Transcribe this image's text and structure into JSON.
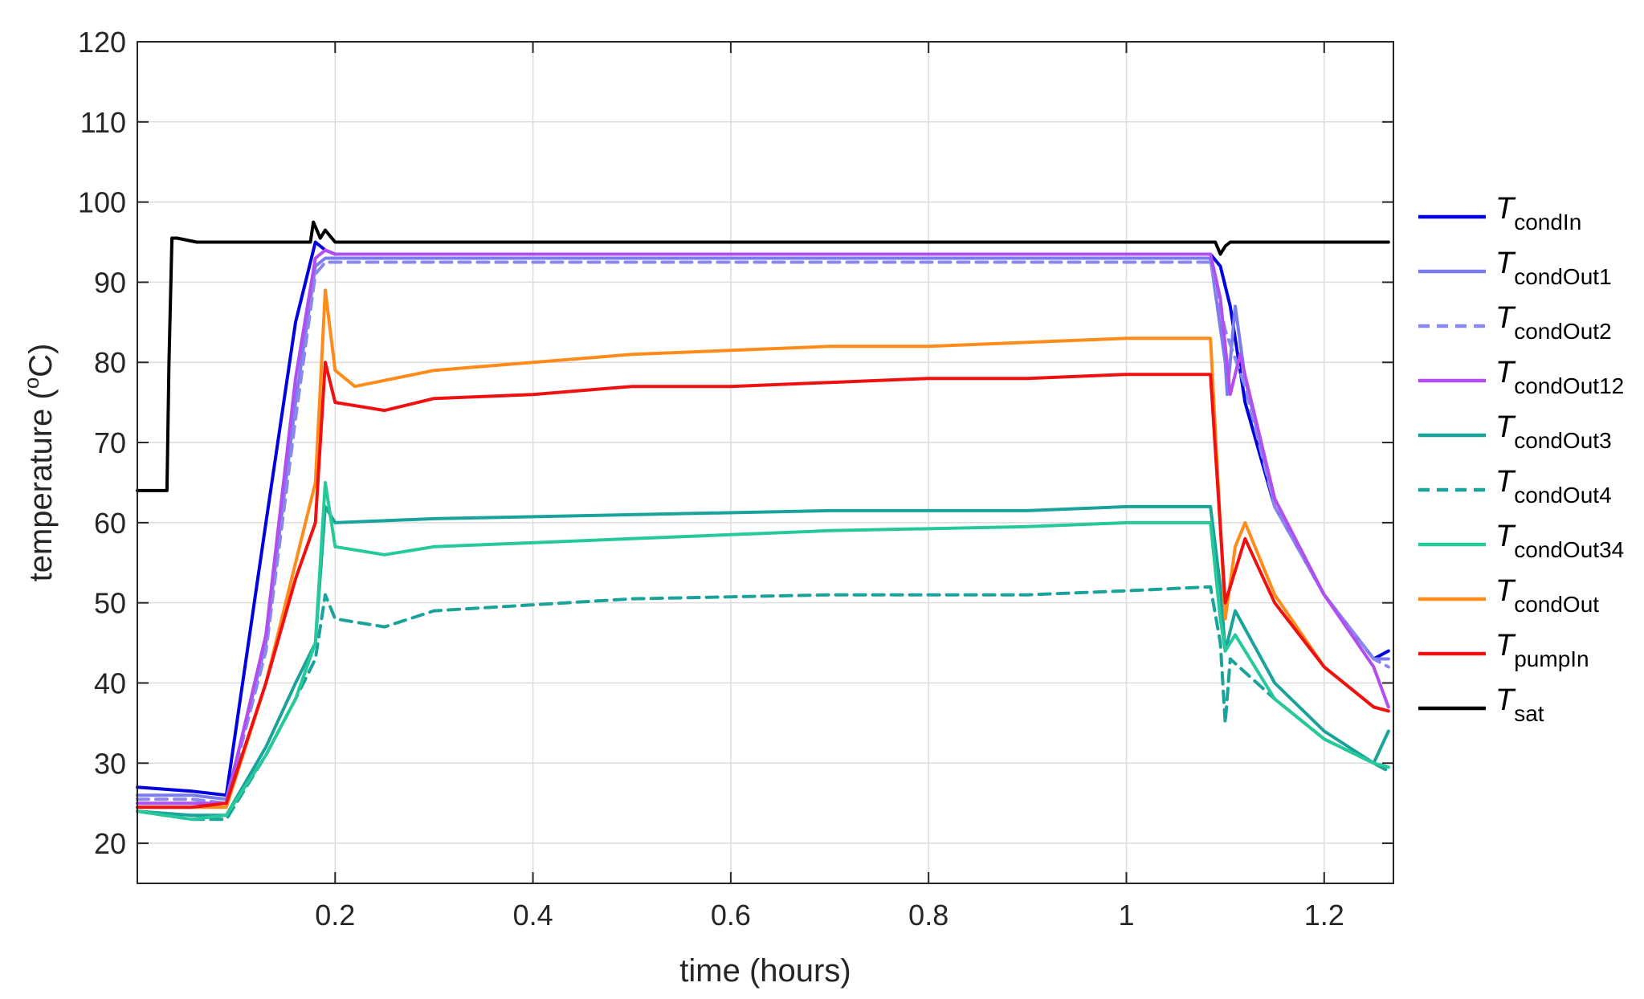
{
  "chart_data": {
    "type": "line",
    "xlabel": "time (hours)",
    "ylabel_pre": "temperature (",
    "ylabel_deg": "o",
    "ylabel_post": "C)",
    "xlim": [
      0,
      1.27
    ],
    "ylim": [
      15,
      120
    ],
    "xticks": [
      0.2,
      0.4,
      0.6,
      0.8,
      1,
      1.2
    ],
    "xtick_labels": [
      "0.2",
      "0.4",
      "0.6",
      "0.8",
      "1",
      "1.2"
    ],
    "yticks": [
      20,
      30,
      40,
      50,
      60,
      70,
      80,
      90,
      100,
      110,
      120
    ],
    "ytick_labels": [
      "20",
      "30",
      "40",
      "50",
      "60",
      "70",
      "80",
      "90",
      "100",
      "110",
      "120"
    ],
    "grid": true,
    "legend_position": "outside-right",
    "series": [
      {
        "name_main": "T",
        "name_sub": "condIn",
        "color": "#0000e0",
        "dash": "solid",
        "x": [
          0,
          0.055,
          0.09,
          0.13,
          0.16,
          0.18,
          0.19,
          0.2,
          0.3,
          0.5,
          0.7,
          0.9,
          1.0,
          1.085,
          1.095,
          1.105,
          1.12,
          1.15,
          1.2,
          1.25,
          1.265
        ],
        "y": [
          27,
          26.5,
          26,
          60,
          85,
          95,
          94,
          93.5,
          93.5,
          93.5,
          93.5,
          93.5,
          93.5,
          93.5,
          92,
          87,
          75,
          62,
          51,
          43,
          44
        ]
      },
      {
        "name_main": "T",
        "name_sub": "condOut1",
        "color": "#7b7bf0",
        "dash": "solid",
        "x": [
          0,
          0.055,
          0.09,
          0.13,
          0.16,
          0.18,
          0.19,
          0.2,
          0.3,
          0.5,
          0.7,
          0.9,
          1.0,
          1.085,
          1.1,
          1.102,
          1.11,
          1.12,
          1.15,
          1.2,
          1.25,
          1.265
        ],
        "y": [
          26,
          26,
          25.5,
          45,
          75,
          92,
          93,
          93,
          93,
          93,
          93,
          93,
          93,
          93,
          80,
          76,
          87,
          78,
          62,
          51,
          43,
          43
        ]
      },
      {
        "name_main": "T",
        "name_sub": "condOut2",
        "color": "#8888ee",
        "dash": "dash",
        "x": [
          0,
          0.055,
          0.09,
          0.13,
          0.16,
          0.18,
          0.19,
          0.2,
          0.3,
          0.5,
          0.7,
          0.9,
          1.0,
          1.085,
          1.1,
          1.12,
          1.15,
          1.2,
          1.25,
          1.265
        ],
        "y": [
          25.5,
          25.5,
          25,
          44,
          73,
          91,
          92.5,
          92.5,
          92.5,
          92.5,
          92.5,
          92.5,
          92.5,
          92.5,
          84,
          77,
          62,
          51,
          43,
          42
        ]
      },
      {
        "name_main": "T",
        "name_sub": "condOut12",
        "color": "#b24ef0",
        "dash": "solid",
        "x": [
          0,
          0.055,
          0.09,
          0.13,
          0.16,
          0.18,
          0.19,
          0.2,
          0.3,
          0.5,
          0.7,
          0.9,
          1.0,
          1.085,
          1.095,
          1.105,
          1.115,
          1.15,
          1.2,
          1.25,
          1.265
        ],
        "y": [
          25,
          25,
          25,
          46,
          78,
          93,
          94,
          93.5,
          93.5,
          93.5,
          93.5,
          93.5,
          93.5,
          93.5,
          88,
          76,
          81,
          63,
          51,
          42,
          37
        ]
      },
      {
        "name_main": "T",
        "name_sub": "condOut3",
        "color": "#1aa39a",
        "dash": "solid",
        "x": [
          0,
          0.055,
          0.09,
          0.13,
          0.16,
          0.18,
          0.19,
          0.2,
          0.3,
          0.5,
          0.7,
          0.9,
          1.0,
          1.085,
          1.095,
          1.1,
          1.11,
          1.15,
          1.2,
          1.25,
          1.265
        ],
        "y": [
          24,
          23.5,
          23.5,
          32,
          40,
          45,
          62,
          60,
          60.5,
          61,
          61.5,
          61.5,
          62,
          62,
          52,
          44,
          49,
          40,
          34,
          30,
          34
        ]
      },
      {
        "name_main": "T",
        "name_sub": "condOut4",
        "color": "#1aa39a",
        "dash": "dash",
        "x": [
          0,
          0.055,
          0.09,
          0.13,
          0.16,
          0.18,
          0.19,
          0.2,
          0.25,
          0.3,
          0.5,
          0.7,
          0.9,
          1.0,
          1.085,
          1.095,
          1.1,
          1.105,
          1.15,
          1.2,
          1.25,
          1.265
        ],
        "y": [
          24,
          23,
          23,
          31,
          38,
          43,
          51,
          48,
          47,
          49,
          50.5,
          51,
          51,
          51.5,
          52,
          45,
          35,
          43,
          38,
          33,
          30,
          29
        ]
      },
      {
        "name_main": "T",
        "name_sub": "condOut34",
        "color": "#25c99a",
        "dash": "solid",
        "x": [
          0,
          0.055,
          0.09,
          0.13,
          0.16,
          0.18,
          0.19,
          0.2,
          0.25,
          0.3,
          0.5,
          0.7,
          0.9,
          1.0,
          1.085,
          1.095,
          1.1,
          1.11,
          1.15,
          1.2,
          1.25,
          1.265
        ],
        "y": [
          24,
          23,
          23.5,
          31,
          38,
          45,
          65,
          57,
          56,
          57,
          58,
          59,
          59.5,
          60,
          60,
          48,
          44,
          46,
          38,
          33,
          30,
          29.5
        ]
      },
      {
        "name_main": "T",
        "name_sub": "condOut",
        "color": "#ff8c1a",
        "dash": "solid",
        "x": [
          0,
          0.055,
          0.09,
          0.13,
          0.16,
          0.18,
          0.19,
          0.2,
          0.22,
          0.3,
          0.4,
          0.5,
          0.6,
          0.7,
          0.8,
          0.9,
          1.0,
          1.085,
          1.1,
          1.11,
          1.12,
          1.15,
          1.2,
          1.25,
          1.265
        ],
        "y": [
          24.5,
          24.5,
          24.5,
          40,
          55,
          65,
          89,
          79,
          77,
          79,
          80,
          81,
          81.5,
          82,
          82,
          82.5,
          83,
          83,
          48,
          57,
          60,
          51,
          42,
          37,
          36.5
        ]
      },
      {
        "name_main": "T",
        "name_sub": "pumpIn",
        "color": "#f01010",
        "dash": "solid",
        "x": [
          0,
          0.055,
          0.09,
          0.13,
          0.16,
          0.18,
          0.19,
          0.2,
          0.25,
          0.3,
          0.4,
          0.5,
          0.6,
          0.7,
          0.8,
          0.9,
          1.0,
          1.085,
          1.1,
          1.105,
          1.12,
          1.15,
          1.2,
          1.25,
          1.265
        ],
        "y": [
          24.5,
          24.5,
          25,
          40,
          53,
          60,
          80,
          75,
          74,
          75.5,
          76,
          77,
          77,
          77.5,
          78,
          78,
          78.5,
          78.5,
          50,
          52,
          58,
          50,
          42,
          37,
          36.5
        ]
      },
      {
        "name_main": "T",
        "name_sub": "sat",
        "color": "#000000",
        "dash": "solid",
        "x": [
          0,
          0.03,
          0.032,
          0.035,
          0.04,
          0.06,
          0.1,
          0.15,
          0.175,
          0.178,
          0.185,
          0.19,
          0.2,
          0.4,
          0.6,
          0.8,
          1.0,
          1.09,
          1.095,
          1.1,
          1.105,
          1.2,
          1.265
        ],
        "y": [
          64,
          64,
          80,
          95.5,
          95.5,
          95,
          95,
          95,
          95,
          97.5,
          95.5,
          96.5,
          95,
          95,
          95,
          95,
          95,
          95,
          93.5,
          94.5,
          95,
          95,
          95
        ]
      }
    ]
  }
}
